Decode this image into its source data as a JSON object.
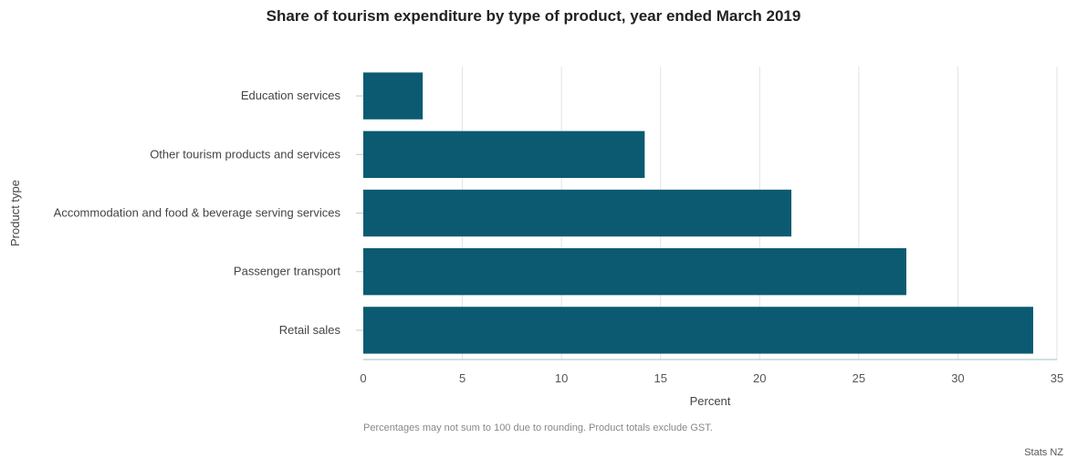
{
  "chart_data": {
    "type": "bar",
    "orientation": "horizontal",
    "title": "Share of tourism expenditure by type of product, year ended March 2019",
    "xlabel": "Percent",
    "ylabel": "Product type",
    "categories": [
      "Education services",
      "Other tourism products and services",
      "Accommodation and food & beverage serving services",
      "Passenger transport",
      "Retail sales"
    ],
    "values": [
      3.0,
      14.2,
      21.6,
      27.4,
      33.8
    ],
    "xlim": [
      0,
      35
    ],
    "xticks": [
      0,
      5,
      10,
      15,
      20,
      25,
      30,
      35
    ],
    "grid": true,
    "bar_color": "#0b5a72"
  },
  "footnote": "Percentages may not sum to 100 due to rounding. Product totals exclude GST.",
  "credit": "Stats NZ"
}
